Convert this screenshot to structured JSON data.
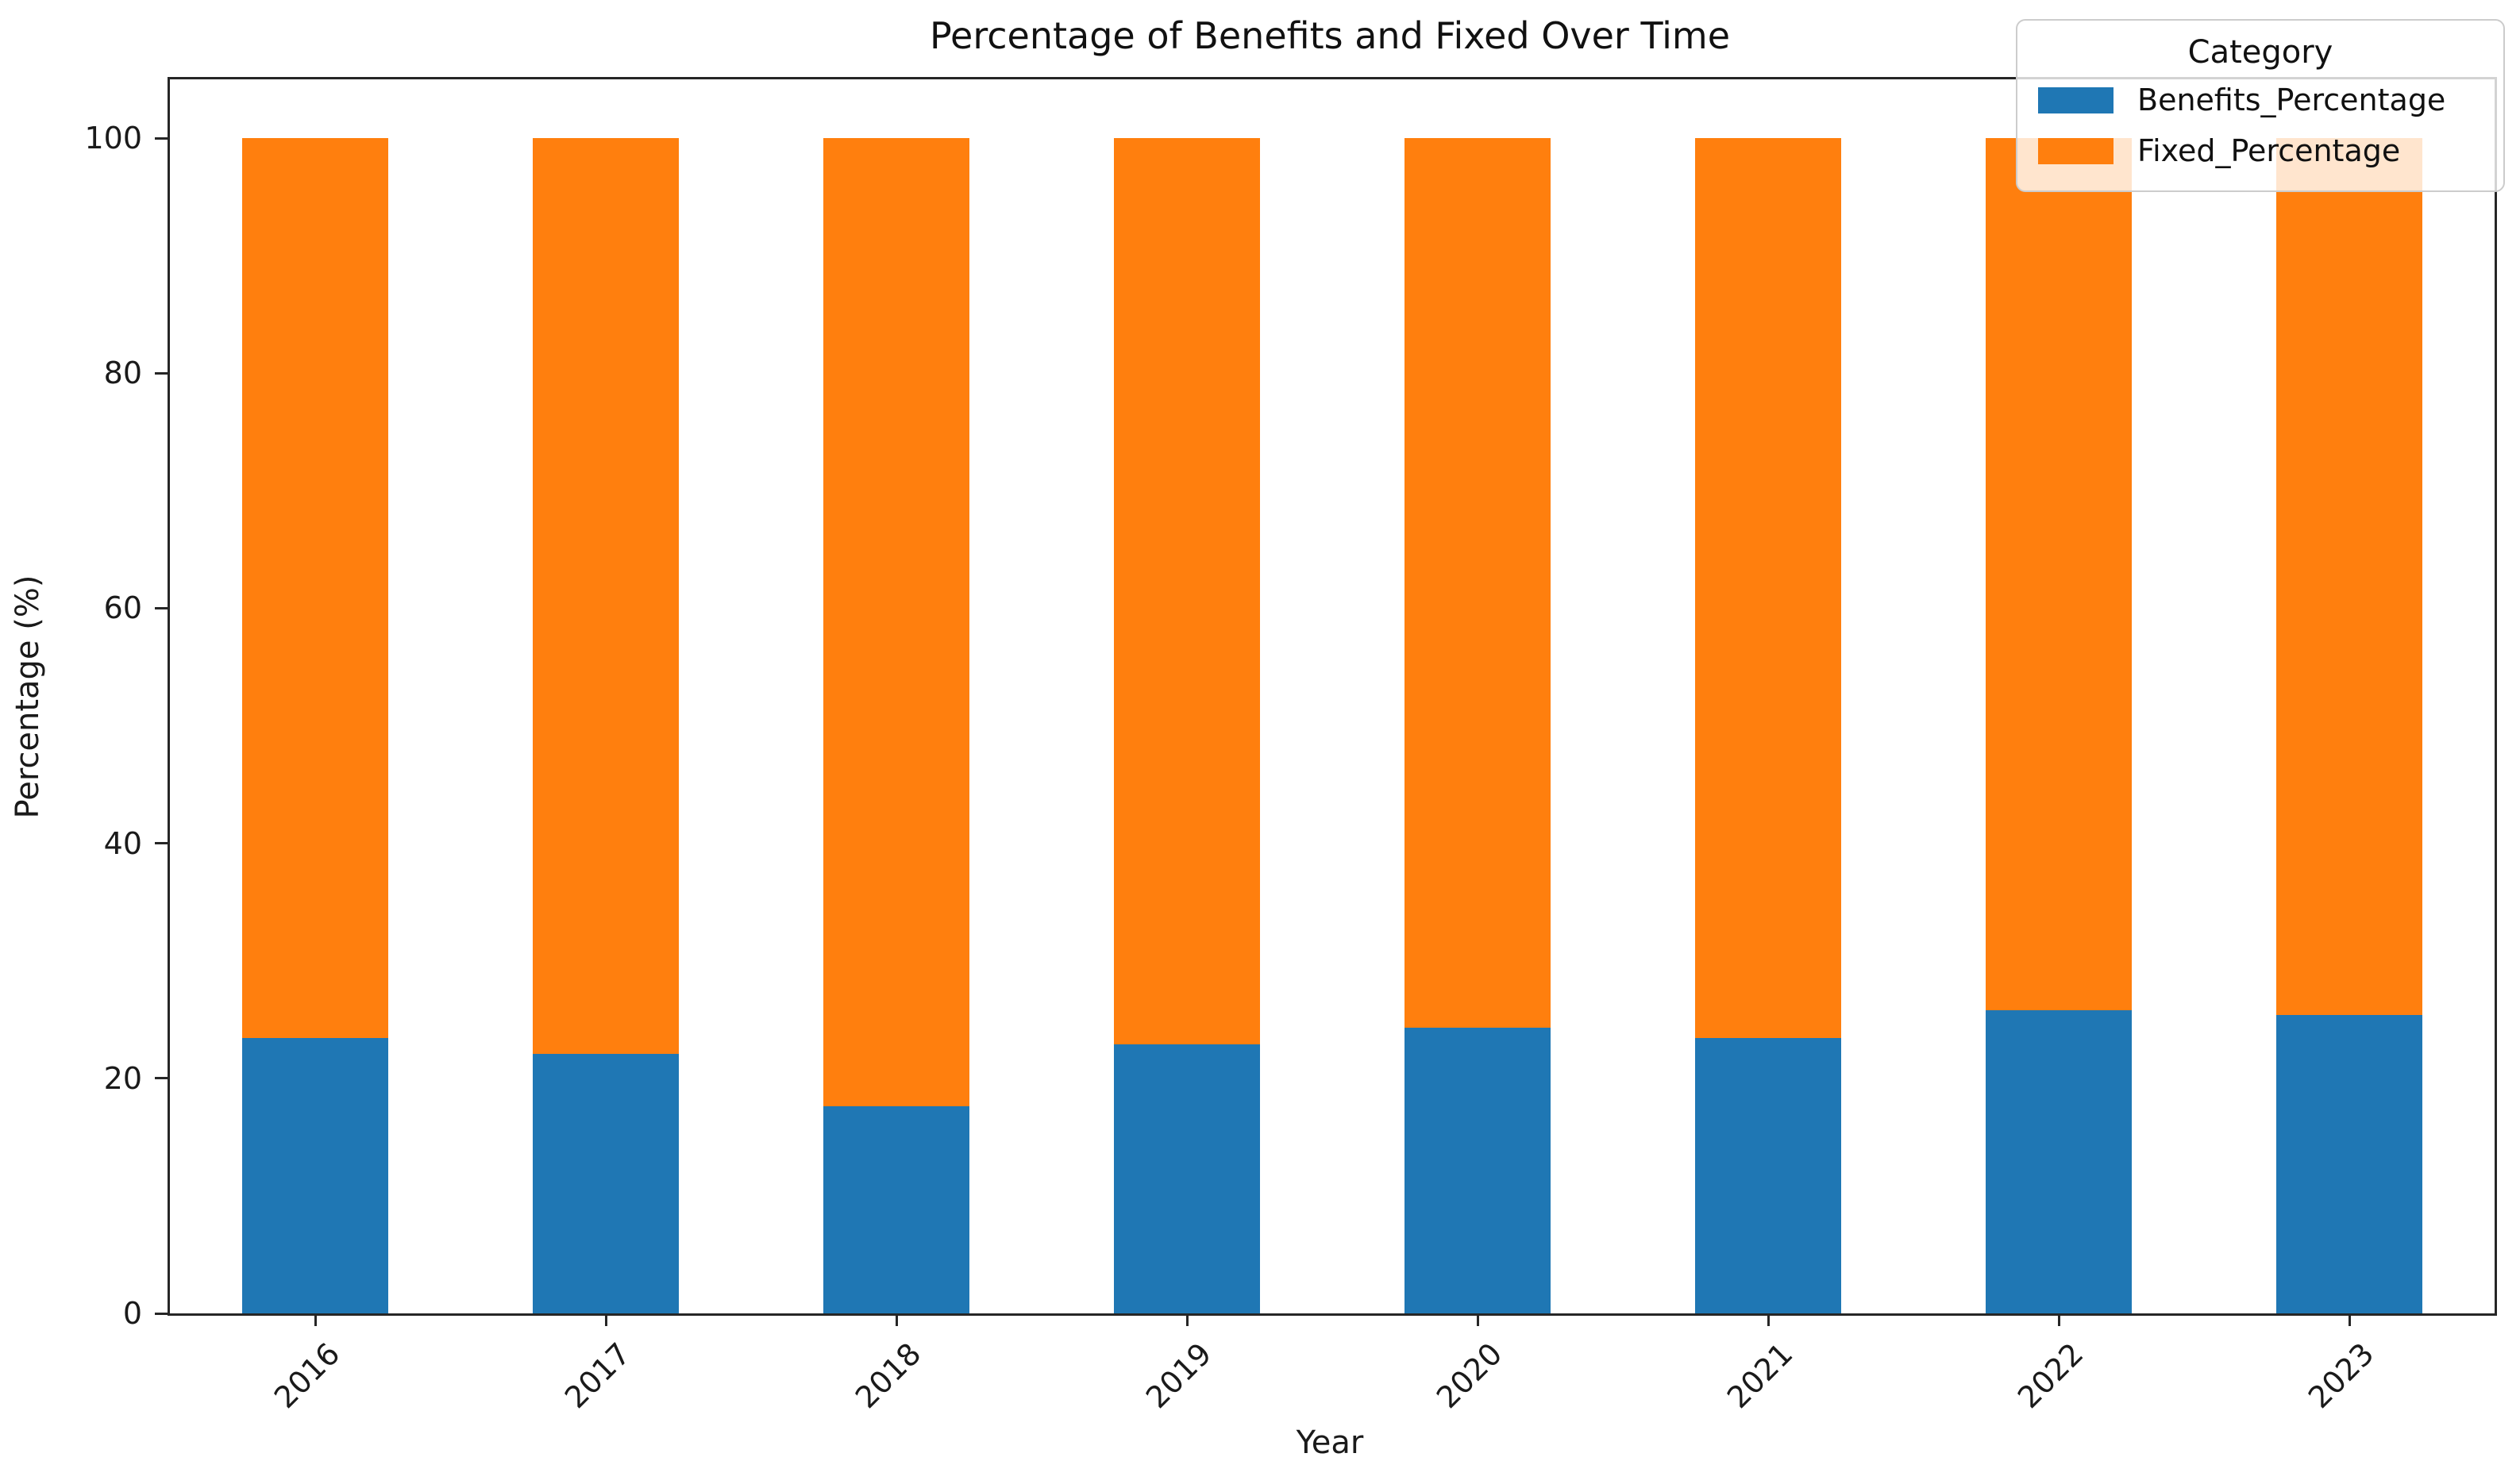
{
  "chart_data": {
    "type": "bar",
    "stacked": true,
    "title": "Percentage of Benefits and Fixed Over Time",
    "xlabel": "Year",
    "ylabel": "Percentage (%)",
    "categories": [
      "2016",
      "2017",
      "2018",
      "2019",
      "2020",
      "2021",
      "2022",
      "2023"
    ],
    "series": [
      {
        "name": "Benefits_Percentage",
        "color": "#1f77b4",
        "values": [
          23.4,
          22.1,
          17.6,
          22.9,
          24.3,
          23.4,
          25.8,
          25.4
        ]
      },
      {
        "name": "Fixed_Percentage",
        "color": "#ff7f0e",
        "values": [
          76.6,
          77.9,
          82.4,
          77.1,
          75.7,
          76.6,
          74.2,
          74.6
        ]
      }
    ],
    "yticks": [
      0,
      20,
      40,
      60,
      80,
      100
    ],
    "ylim": [
      0,
      105
    ],
    "xtick_rotation": 45,
    "grid": false,
    "legend": {
      "title": "Category",
      "position": "upper right",
      "frame_alpha": 0.8,
      "entries": [
        "Benefits_Percentage",
        "Fixed_Percentage"
      ]
    },
    "colors": {
      "background": "#ffffff",
      "spine": "#262626",
      "text": "#1a1a1a",
      "legend_border": "#cccccc"
    }
  }
}
